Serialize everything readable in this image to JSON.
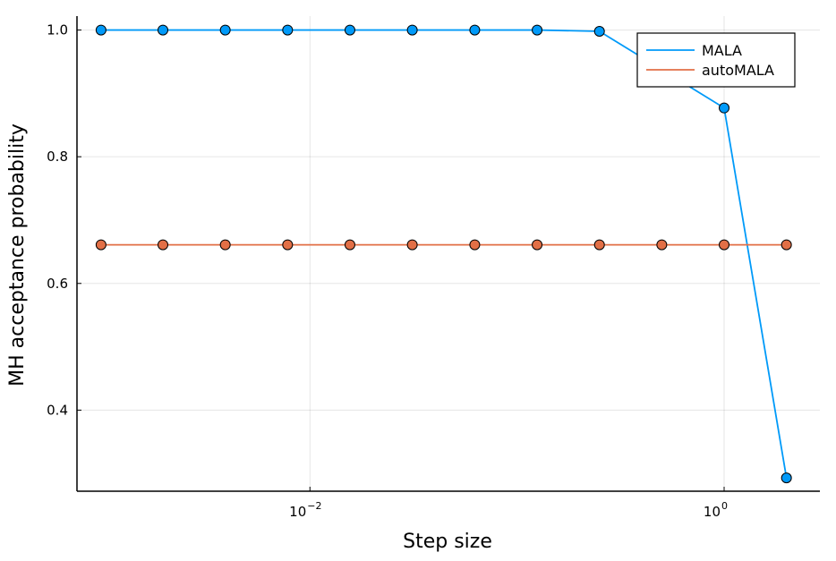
{
  "chart_data": {
    "type": "line",
    "title": "",
    "xlabel": "Step size",
    "ylabel": "MH acceptance probability",
    "xscale": "log10",
    "x_tick_labels": [
      {
        "value": 0.01,
        "base": "10",
        "exponent": "−2"
      },
      {
        "value": 1,
        "base": "10",
        "exponent": "0"
      }
    ],
    "y_tick_labels": [
      "0.4",
      "0.6",
      "0.8",
      "1.0"
    ],
    "y_ticks": [
      0.4,
      0.6,
      0.8,
      1.0
    ],
    "xlim": [
      0.00075,
      2.9
    ],
    "ylim": [
      0.272,
      1.022
    ],
    "grid": true,
    "legend": {
      "position": "top-right"
    },
    "x": [
      0.00098,
      0.00195,
      0.0039,
      0.0078,
      0.0156,
      0.0312,
      0.0625,
      0.125,
      0.25,
      0.5,
      1.0,
      2.0
    ],
    "series": [
      {
        "name": "MALA",
        "color": "#009af9",
        "values": [
          1.0,
          1.0,
          1.0,
          1.0,
          1.0,
          1.0,
          1.0,
          1.0,
          0.998,
          null,
          0.877,
          0.293
        ]
      },
      {
        "name": "autoMALA",
        "color": "#e26f46",
        "values": [
          0.661,
          0.661,
          0.661,
          0.661,
          0.661,
          0.661,
          0.661,
          0.661,
          0.661,
          0.661,
          0.661,
          0.661
        ]
      }
    ]
  }
}
